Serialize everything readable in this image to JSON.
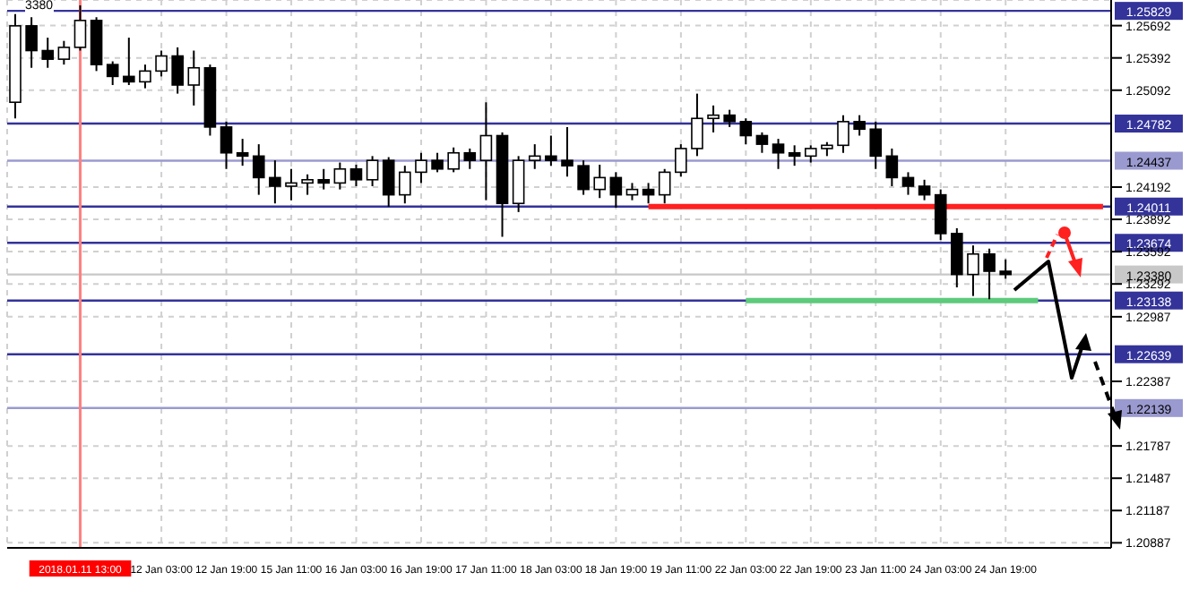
{
  "chart_data": {
    "type": "candlestick",
    "color": "#000000",
    "categories": [
      null,
      null,
      null,
      null,
      "2018.01.11 13:00",
      null,
      null,
      null,
      null,
      "12 Jan 03:00",
      null,
      null,
      null,
      "12 Jan 19:00",
      null,
      null,
      null,
      "15 Jan 11:00",
      null,
      null,
      null,
      "16 Jan 03:00",
      null,
      null,
      null,
      "16 Jan 19:00",
      null,
      null,
      null,
      "17 Jan 11:00",
      null,
      null,
      null,
      "18 Jan 03:00",
      null,
      null,
      null,
      "18 Jan 19:00",
      null,
      null,
      null,
      "19 Jan 11:00",
      null,
      null,
      null,
      "22 Jan 03:00",
      null,
      null,
      null,
      "22 Jan 19:00",
      null,
      null,
      null,
      "23 Jan 11:00",
      null,
      null,
      null,
      "24 Jan 03:00",
      null,
      null,
      null,
      "24 Jan 19:00",
      null,
      null,
      null,
      null,
      null,
      null
    ],
    "ohlc": [
      [
        1.2498,
        1.258,
        1.2483,
        1.2569
      ],
      [
        1.2569,
        1.2577,
        1.253,
        1.2546
      ],
      [
        1.2546,
        1.2558,
        1.253,
        1.2538
      ],
      [
        1.2538,
        1.2555,
        1.2533,
        1.2549
      ],
      [
        1.2549,
        1.2588,
        1.2546,
        1.2574
      ],
      [
        1.2574,
        1.2577,
        1.2527,
        1.2533
      ],
      [
        1.2533,
        1.2536,
        1.2514,
        1.2522
      ],
      [
        1.2522,
        1.2558,
        1.2514,
        1.2517
      ],
      [
        1.2517,
        1.2533,
        1.2511,
        1.2527
      ],
      [
        1.2527,
        1.2546,
        1.2522,
        1.2541
      ],
      [
        1.2541,
        1.2549,
        1.2506,
        1.2514
      ],
      [
        1.2514,
        1.2546,
        1.2495,
        1.253
      ],
      [
        1.253,
        1.2533,
        1.2467,
        1.2475
      ],
      [
        1.2475,
        1.248,
        1.2436,
        1.2451
      ],
      [
        1.2451,
        1.2464,
        1.2439,
        1.2448
      ],
      [
        1.2448,
        1.2459,
        1.2412,
        1.2428
      ],
      [
        1.2428,
        1.2444,
        1.2404,
        1.242
      ],
      [
        1.242,
        1.2436,
        1.2407,
        1.2423
      ],
      [
        1.2423,
        1.2431,
        1.2412,
        1.2426
      ],
      [
        1.2426,
        1.2436,
        1.2417,
        1.2423
      ],
      [
        1.2423,
        1.2442,
        1.2417,
        1.2436
      ],
      [
        1.2436,
        1.244,
        1.242,
        1.2426
      ],
      [
        1.2426,
        1.2448,
        1.242,
        1.2444
      ],
      [
        1.2444,
        1.2447,
        1.2401,
        1.2412
      ],
      [
        1.2412,
        1.2439,
        1.2404,
        1.2433
      ],
      [
        1.2433,
        1.2451,
        1.2423,
        1.2444
      ],
      [
        1.2444,
        1.2451,
        1.2433,
        1.2436
      ],
      [
        1.2436,
        1.2456,
        1.2433,
        1.2451
      ],
      [
        1.2451,
        1.2455,
        1.2436,
        1.2444
      ],
      [
        1.2444,
        1.2498,
        1.2407,
        1.2467
      ],
      [
        1.2467,
        1.247,
        1.2373,
        1.2404
      ],
      [
        1.2404,
        1.2448,
        1.2396,
        1.2444
      ],
      [
        1.2444,
        1.2459,
        1.2436,
        1.2448
      ],
      [
        1.2448,
        1.2467,
        1.2439,
        1.2444
      ],
      [
        1.2444,
        1.2475,
        1.2429,
        1.2439
      ],
      [
        1.2439,
        1.2444,
        1.2412,
        1.2417
      ],
      [
        1.2417,
        1.244,
        1.2409,
        1.2428
      ],
      [
        1.2428,
        1.2433,
        1.24,
        1.2412
      ],
      [
        1.2412,
        1.2423,
        1.2407,
        1.2417
      ],
      [
        1.2417,
        1.2423,
        1.2404,
        1.2412
      ],
      [
        1.2412,
        1.2436,
        1.2404,
        1.2433
      ],
      [
        1.2433,
        1.2459,
        1.2429,
        1.2455
      ],
      [
        1.2455,
        1.2506,
        1.2448,
        1.2483
      ],
      [
        1.2483,
        1.2495,
        1.247,
        1.2486
      ],
      [
        1.2486,
        1.2491,
        1.2475,
        1.248
      ],
      [
        1.248,
        1.2483,
        1.2459,
        1.2467
      ],
      [
        1.2467,
        1.247,
        1.2451,
        1.2459
      ],
      [
        1.2459,
        1.2464,
        1.2436,
        1.2451
      ],
      [
        1.2451,
        1.2458,
        1.2439,
        1.2448
      ],
      [
        1.2448,
        1.2458,
        1.2442,
        1.2455
      ],
      [
        1.2455,
        1.2461,
        1.2448,
        1.2458
      ],
      [
        1.2458,
        1.2486,
        1.2451,
        1.248
      ],
      [
        1.248,
        1.2486,
        1.2467,
        1.2473
      ],
      [
        1.2473,
        1.248,
        1.2436,
        1.2448
      ],
      [
        1.2448,
        1.2455,
        1.242,
        1.2428
      ],
      [
        1.2428,
        1.2433,
        1.2412,
        1.242
      ],
      [
        1.242,
        1.2426,
        1.2407,
        1.2412
      ],
      [
        1.2412,
        1.2417,
        1.237,
        1.2376
      ],
      [
        1.2376,
        1.2381,
        1.2326,
        1.2338
      ],
      [
        1.2338,
        1.2365,
        1.2318,
        1.2357
      ],
      [
        1.2357,
        1.2362,
        1.2315,
        1.2341
      ],
      [
        1.2341,
        1.2352,
        1.2334,
        1.2338
      ],
      null,
      null,
      null,
      null,
      null,
      null
    ],
    "series": [
      {
        "type": "line",
        "color": "#ff2020",
        "values": [
          null,
          null,
          null,
          null,
          null,
          null,
          null,
          null,
          null,
          null,
          null,
          null,
          null,
          null,
          null,
          null,
          null,
          null,
          null,
          null,
          null,
          null,
          null,
          null,
          null,
          null,
          null,
          null,
          null,
          null,
          null,
          null,
          null,
          null,
          null,
          null,
          null,
          null,
          null,
          1.24011,
          1.24011,
          1.24011,
          1.24011,
          1.24011,
          1.24011,
          1.24011,
          1.24011,
          1.24011,
          1.24011,
          1.24011,
          1.24011,
          1.24011,
          1.24011,
          1.24011,
          1.24011,
          1.24011,
          1.24011,
          1.24011,
          1.24011,
          1.24011,
          1.24011,
          1.24011,
          1.24011,
          1.24011,
          1.24011,
          1.24011,
          1.24011,
          1.24011
        ]
      },
      {
        "type": "line",
        "color": "#5ccb7c",
        "values": [
          null,
          null,
          null,
          null,
          null,
          null,
          null,
          null,
          null,
          null,
          null,
          null,
          null,
          null,
          null,
          null,
          null,
          null,
          null,
          null,
          null,
          null,
          null,
          null,
          null,
          null,
          null,
          null,
          null,
          null,
          null,
          null,
          null,
          null,
          null,
          null,
          null,
          null,
          null,
          null,
          null,
          null,
          null,
          null,
          null,
          1.23138,
          1.23138,
          1.23138,
          1.23138,
          1.23138,
          1.23138,
          1.23138,
          1.23138,
          1.23138,
          1.23138,
          1.23138,
          1.23138,
          1.23138,
          1.23138,
          1.23138,
          1.23138,
          1.23138,
          1.23138,
          1.23138,
          null,
          null,
          null,
          null
        ]
      }
    ],
    "ylim": [
      1.2084,
      1.2593
    ],
    "yticks": [
      1.20887,
      1.21187,
      1.21487,
      1.21787,
      1.22387,
      1.22987,
      1.23292,
      1.23592,
      1.23892,
      1.24192,
      1.25092,
      1.25392,
      1.25692
    ],
    "ref_lines": [
      {
        "axis": "x",
        "value": "2018.01.11 13:00",
        "color": "#ff8080"
      },
      {
        "axis": "y",
        "value": 1.25829,
        "label": "1.25829",
        "color": "#33339a"
      },
      {
        "axis": "y",
        "value": 1.24782,
        "label": "1.24782",
        "color": "#33339a"
      },
      {
        "axis": "y",
        "value": 1.24437,
        "label": "1.24437",
        "color": "#9a9ad0"
      },
      {
        "axis": "y",
        "value": 1.24011,
        "label": "1.24011",
        "color": "#33339a"
      },
      {
        "axis": "y",
        "value": 1.23674,
        "label": "1.23674",
        "color": "#33339a"
      },
      {
        "axis": "y",
        "value": 1.2338,
        "label": "1.23380",
        "color": "#c8c8c8"
      },
      {
        "axis": "y",
        "value": 1.23138,
        "label": "1.23138",
        "color": "#33339a"
      },
      {
        "axis": "y",
        "value": 1.22639,
        "label": "1.22639",
        "color": "#33339a"
      },
      {
        "axis": "y",
        "value": 1.22139,
        "label": "1.22139",
        "color": "#9a9ad0"
      }
    ],
    "annotations": [
      "3380"
    ],
    "grid": true
  }
}
